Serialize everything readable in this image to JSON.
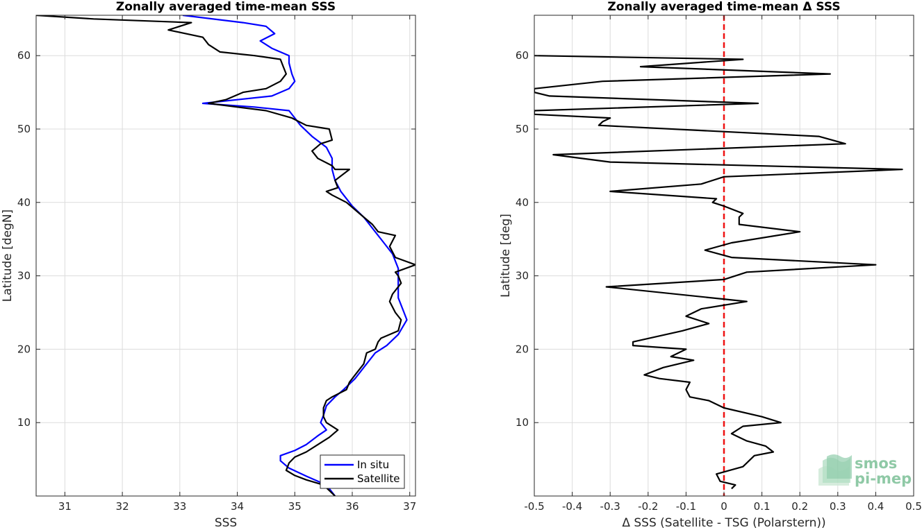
{
  "chart_data": [
    {
      "type": "line",
      "title": "Zonally averaged time-mean SSS",
      "xlabel": "SSS",
      "ylabel": "Latitude [degN]",
      "xlim": [
        30.5,
        37.1
      ],
      "ylim": [
        0,
        65.5
      ],
      "xticks": [
        31,
        32,
        33,
        34,
        35,
        36,
        37
      ],
      "yticks": [
        10,
        20,
        30,
        40,
        50,
        60
      ],
      "grid": true,
      "legend": "bottom-right",
      "series": [
        {
          "name": "In situ",
          "color": "#0000ff",
          "points": [
            [
              35.7,
              0
            ],
            [
              35.55,
              1.5
            ],
            [
              35.2,
              2.7
            ],
            [
              34.9,
              3.8
            ],
            [
              34.75,
              4.8
            ],
            [
              34.75,
              5.5
            ],
            [
              35.0,
              6.2
            ],
            [
              35.2,
              7.0
            ],
            [
              35.4,
              8.2
            ],
            [
              35.55,
              9.0
            ],
            [
              35.45,
              10.0
            ],
            [
              35.5,
              11.0
            ],
            [
              35.55,
              12.3
            ],
            [
              35.7,
              13.5
            ],
            [
              35.85,
              14.5
            ],
            [
              36.05,
              16.0
            ],
            [
              36.2,
              17.5
            ],
            [
              36.4,
              19.5
            ],
            [
              36.6,
              20.5
            ],
            [
              36.8,
              22.0
            ],
            [
              36.95,
              24.0
            ],
            [
              36.9,
              25.0
            ],
            [
              36.8,
              27.0
            ],
            [
              36.8,
              29.0
            ],
            [
              36.8,
              31.0
            ],
            [
              36.7,
              33.0
            ],
            [
              36.55,
              34.5
            ],
            [
              36.45,
              35.5
            ],
            [
              36.2,
              38.0
            ],
            [
              36.0,
              39.5
            ],
            [
              35.8,
              41.5
            ],
            [
              35.7,
              43.0
            ],
            [
              35.65,
              44.5
            ],
            [
              35.65,
              46.0
            ],
            [
              35.55,
              47.5
            ],
            [
              35.3,
              49.0
            ],
            [
              35.1,
              50.5
            ],
            [
              34.9,
              52.5
            ],
            [
              34.3,
              53.0
            ],
            [
              33.4,
              53.5
            ],
            [
              34.0,
              54.0
            ],
            [
              34.6,
              54.5
            ],
            [
              34.9,
              55.5
            ],
            [
              35.0,
              56.5
            ],
            [
              34.95,
              57.5
            ],
            [
              34.9,
              59.0
            ],
            [
              34.9,
              60.0
            ],
            [
              34.6,
              61.0
            ],
            [
              34.4,
              62.0
            ],
            [
              34.65,
              63.0
            ],
            [
              34.5,
              64.0
            ],
            [
              34.1,
              64.5
            ],
            [
              33.05,
              65.5
            ]
          ]
        },
        {
          "name": "Satellite",
          "color": "#000000",
          "points": [
            [
              35.7,
              0
            ],
            [
              35.5,
              1.5
            ],
            [
              35.2,
              2.2
            ],
            [
              35.0,
              2.8
            ],
            [
              34.85,
              3.5
            ],
            [
              34.9,
              4.5
            ],
            [
              35.0,
              5.3
            ],
            [
              35.2,
              6.0
            ],
            [
              35.4,
              7.0
            ],
            [
              35.6,
              8.0
            ],
            [
              35.75,
              9.0
            ],
            [
              35.55,
              10.0
            ],
            [
              35.5,
              10.8
            ],
            [
              35.5,
              12.0
            ],
            [
              35.55,
              13.0
            ],
            [
              35.65,
              13.5
            ],
            [
              35.9,
              14.5
            ],
            [
              35.95,
              15.5
            ],
            [
              36.1,
              17.0
            ],
            [
              36.2,
              18.0
            ],
            [
              36.25,
              19.5
            ],
            [
              36.4,
              20.0
            ],
            [
              36.45,
              21.0
            ],
            [
              36.5,
              21.5
            ],
            [
              36.8,
              22.5
            ],
            [
              36.85,
              24.0
            ],
            [
              36.75,
              25.0
            ],
            [
              36.65,
              26.5
            ],
            [
              36.7,
              27.5
            ],
            [
              36.85,
              29.0
            ],
            [
              36.8,
              30.0
            ],
            [
              36.75,
              30.5
            ],
            [
              37.1,
              31.5
            ],
            [
              36.75,
              32.5
            ],
            [
              36.65,
              34.0
            ],
            [
              36.75,
              35.5
            ],
            [
              36.45,
              36.0
            ],
            [
              36.35,
              37.0
            ],
            [
              36.2,
              38.0
            ],
            [
              35.9,
              40.0
            ],
            [
              35.65,
              41.0
            ],
            [
              35.55,
              41.5
            ],
            [
              35.75,
              42.0
            ],
            [
              35.7,
              43.0
            ],
            [
              35.95,
              44.5
            ],
            [
              35.7,
              44.5
            ],
            [
              35.65,
              45.0
            ],
            [
              35.4,
              46.0
            ],
            [
              35.3,
              47.0
            ],
            [
              35.45,
              48.0
            ],
            [
              35.65,
              48.5
            ],
            [
              35.6,
              50.0
            ],
            [
              35.2,
              50.5
            ],
            [
              34.95,
              51.5
            ],
            [
              34.5,
              52.5
            ],
            [
              34.0,
              53.0
            ],
            [
              33.5,
              53.5
            ],
            [
              33.8,
              54.0
            ],
            [
              34.1,
              55.0
            ],
            [
              34.5,
              55.5
            ],
            [
              34.75,
              56.5
            ],
            [
              34.85,
              57.5
            ],
            [
              34.8,
              58.5
            ],
            [
              34.75,
              59.5
            ],
            [
              34.3,
              60.0
            ],
            [
              33.7,
              60.5
            ],
            [
              33.5,
              61.5
            ],
            [
              33.4,
              62.5
            ],
            [
              32.8,
              63.5
            ],
            [
              33.2,
              64.5
            ],
            [
              31.5,
              65.0
            ],
            [
              30.5,
              65.5
            ]
          ]
        }
      ]
    },
    {
      "type": "line",
      "title": "Zonally averaged time-mean Δ SSS",
      "xlabel": "Δ SSS (Satellite - TSG (Polarstern))",
      "ylabel": "Latitude [deg]",
      "xlim": [
        -0.5,
        0.5
      ],
      "ylim": [
        0,
        65.5
      ],
      "xticks": [
        -0.5,
        -0.4,
        -0.3,
        -0.2,
        -0.1,
        0,
        0.1,
        0.2,
        0.3,
        0.4,
        0.5
      ],
      "xtick_labels": [
        "-0.5",
        "-0.4",
        "-0.3",
        "-0.2",
        "-0.1",
        "0",
        "0.1",
        "0.2",
        "0.3",
        "0.4",
        "0.5"
      ],
      "yticks": [
        10,
        20,
        30,
        40,
        50,
        60
      ],
      "grid": true,
      "reference_line": {
        "x": 0,
        "color": "#ee1111",
        "style": "dashed"
      },
      "series": [
        {
          "color": "#000000",
          "points": [
            [
              0.02,
              1.0
            ],
            [
              0.03,
              1.5
            ],
            [
              -0.01,
              2.0
            ],
            [
              -0.02,
              3.0
            ],
            [
              0.05,
              4.0
            ],
            [
              0.08,
              5.5
            ],
            [
              0.13,
              6.0
            ],
            [
              0.11,
              6.8
            ],
            [
              0.06,
              7.5
            ],
            [
              0.04,
              8.0
            ],
            [
              0.02,
              8.5
            ],
            [
              0.05,
              9.5
            ],
            [
              0.15,
              10.0
            ],
            [
              0.1,
              10.8
            ],
            [
              0.0,
              12.0
            ],
            [
              -0.04,
              13.0
            ],
            [
              -0.09,
              13.5
            ],
            [
              -0.1,
              14.5
            ],
            [
              -0.09,
              15.5
            ],
            [
              -0.17,
              16.0
            ],
            [
              -0.21,
              16.5
            ],
            [
              -0.16,
              17.5
            ],
            [
              -0.08,
              18.5
            ],
            [
              -0.14,
              19.0
            ],
            [
              -0.1,
              20.0
            ],
            [
              -0.24,
              20.5
            ],
            [
              -0.24,
              21.0
            ],
            [
              -0.11,
              22.5
            ],
            [
              -0.04,
              23.5
            ],
            [
              -0.1,
              24.5
            ],
            [
              -0.06,
              25.5
            ],
            [
              0.06,
              26.5
            ],
            [
              -0.31,
              28.5
            ],
            [
              0.0,
              29.5
            ],
            [
              0.06,
              30.5
            ],
            [
              0.4,
              31.5
            ],
            [
              0.02,
              32.5
            ],
            [
              -0.05,
              33.5
            ],
            [
              0.02,
              34.5
            ],
            [
              0.2,
              36.0
            ],
            [
              0.04,
              37.0
            ],
            [
              0.04,
              38.0
            ],
            [
              0.05,
              38.5
            ],
            [
              0.0,
              39.5
            ],
            [
              -0.03,
              40.0
            ],
            [
              -0.02,
              40.5
            ],
            [
              -0.3,
              41.5
            ],
            [
              -0.06,
              42.5
            ],
            [
              0.0,
              43.5
            ],
            [
              0.47,
              44.5
            ],
            [
              -0.3,
              45.5
            ],
            [
              -0.45,
              46.5
            ],
            [
              0.32,
              48.0
            ],
            [
              0.25,
              49.0
            ],
            [
              -0.33,
              50.5
            ],
            [
              -0.32,
              51.0
            ],
            [
              -0.3,
              51.5
            ],
            [
              -0.5,
              52.0
            ],
            [
              -0.5,
              52.5
            ],
            [
              0.09,
              53.5
            ],
            [
              -0.46,
              54.5
            ],
            [
              -0.5,
              55.0
            ],
            [
              -0.5,
              55.5
            ],
            [
              -0.32,
              56.5
            ],
            [
              0.28,
              57.5
            ],
            [
              -0.22,
              58.5
            ],
            [
              0.05,
              59.5
            ],
            [
              -0.5,
              60.0
            ]
          ]
        }
      ],
      "logo": [
        "smos",
        "pi-mep"
      ]
    }
  ]
}
